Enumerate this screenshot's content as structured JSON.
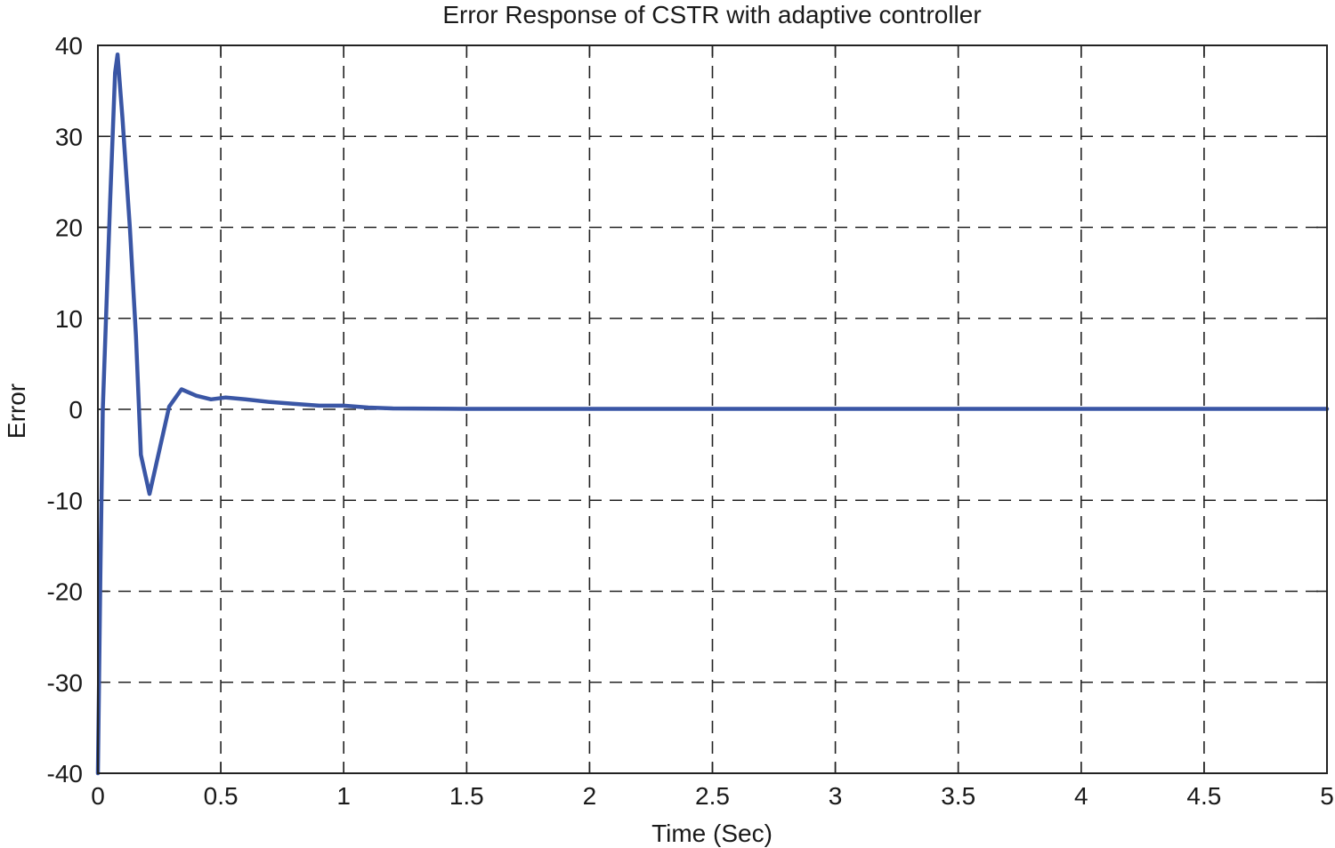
{
  "chart_data": {
    "type": "line",
    "title": "Error Response of CSTR with adaptive controller",
    "xlabel": "Time (Sec)",
    "ylabel": "Error",
    "xlim": [
      0,
      5
    ],
    "ylim": [
      -40,
      40
    ],
    "x_ticks": [
      0,
      0.5,
      1,
      1.5,
      2,
      2.5,
      3,
      3.5,
      4,
      4.5,
      5
    ],
    "x_tick_labels": [
      "0",
      "0.5",
      "1",
      "1.5",
      "2",
      "2.5",
      "3",
      "3.5",
      "4",
      "4.5",
      "5"
    ],
    "y_ticks": [
      40,
      30,
      20,
      10,
      0,
      -10,
      -20,
      -30,
      -40
    ],
    "y_tick_labels": [
      "40",
      "30",
      "20",
      "10",
      "0",
      "-10",
      "-20",
      "-30",
      "-40"
    ],
    "grid": true,
    "line_color": "#3a56a5",
    "series": [
      {
        "x": [
          0,
          0.01,
          0.02,
          0.05,
          0.07,
          0.08,
          0.1,
          0.13,
          0.155,
          0.175,
          0.21,
          0.29,
          0.34,
          0.4,
          0.46,
          0.52,
          0.6,
          0.7,
          0.8,
          0.9,
          1.0,
          1.1,
          1.2,
          1.5,
          2,
          2.5,
          3,
          3.5,
          4,
          4.5,
          5
        ],
        "y": [
          -40,
          -18,
          0,
          23,
          37,
          39,
          32,
          20,
          8,
          -5,
          -9.3,
          0.3,
          2.2,
          1.5,
          1.1,
          1.3,
          1.1,
          0.8,
          0.6,
          0.4,
          0.4,
          0.2,
          0.1,
          0.05,
          0.05,
          0.05,
          0.05,
          0.05,
          0.05,
          0.05,
          0.05
        ]
      }
    ]
  }
}
